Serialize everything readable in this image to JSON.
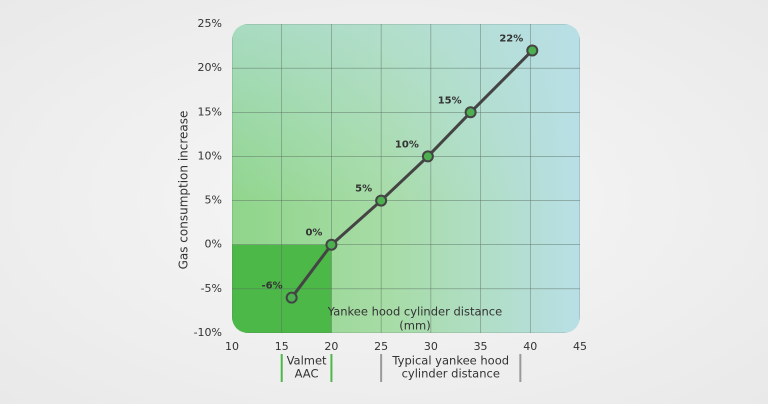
{
  "chart_data": {
    "type": "line",
    "y_label": "Gas consumption increase",
    "x": [
      16,
      20,
      25,
      29.7,
      34,
      40.2
    ],
    "values": [
      -6,
      0,
      5,
      10,
      15,
      22
    ],
    "value_labels": [
      "-6%",
      "0%",
      "5%",
      "10%",
      "15%",
      "22%"
    ],
    "color": "#4caf50",
    "line_color": "#444444",
    "xlim": [
      10,
      45
    ],
    "xticks": [
      10,
      15,
      20,
      25,
      30,
      35,
      40,
      45
    ],
    "ylim": [
      -10,
      25
    ],
    "yticks": [
      {
        "value": -10,
        "label": "-10%"
      },
      {
        "value": -5,
        "label": "-5%"
      },
      {
        "value": 0,
        "label": "0%"
      },
      {
        "value": 5,
        "label": "5%"
      },
      {
        "value": 10,
        "label": "10%"
      },
      {
        "value": 15,
        "label": "15%"
      },
      {
        "value": 20,
        "label": "20%"
      },
      {
        "value": 25,
        "label": "25%"
      }
    ],
    "grid": true,
    "plot_annotation": [
      "Yankee hood cylinder distance",
      "(mm)"
    ],
    "highlight": {
      "x": [
        10,
        20
      ],
      "y": [
        -10,
        0
      ],
      "color": "#4cb848"
    },
    "ranges": [
      {
        "text": [
          "Valmet",
          "AAC"
        ],
        "x": [
          15,
          20
        ],
        "color": "#4cb848"
      },
      {
        "text": [
          "Typical yankee hood",
          "cylinder distance"
        ],
        "x": [
          25,
          39
        ],
        "color": "#999999"
      }
    ]
  }
}
